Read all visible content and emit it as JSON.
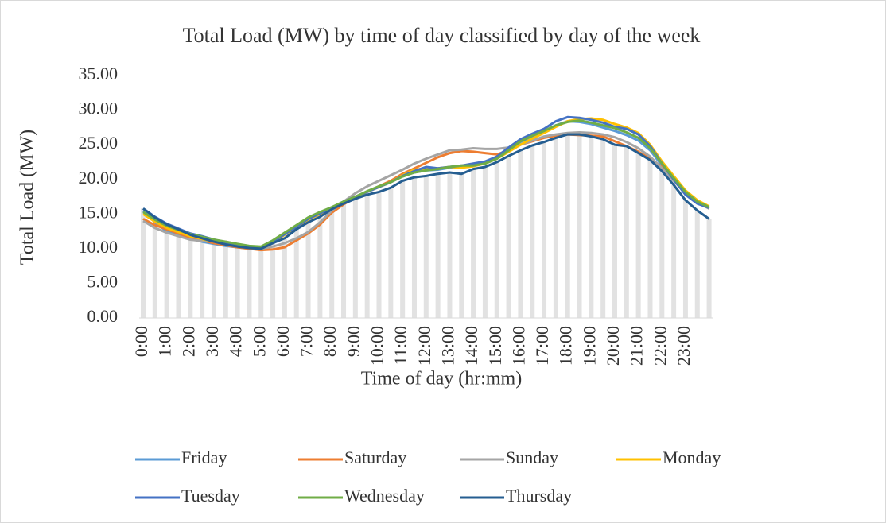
{
  "chart_data": {
    "type": "line",
    "title": "Total Load (MW) by time of day classified by day of the week",
    "x_label": "Time of day (hr:mm)",
    "y_label": "Total Load (MW)",
    "categories": [
      "0:00",
      null,
      "1:00",
      null,
      "2:00",
      null,
      "3:00",
      null,
      "4:00",
      null,
      "5:00",
      null,
      "6:00",
      null,
      "7:00",
      null,
      "8:00",
      null,
      "9:00",
      null,
      "10:00",
      null,
      "11:00",
      null,
      "12:00",
      null,
      "13:00",
      null,
      "14:00",
      null,
      "15:00",
      null,
      "16:00",
      null,
      "17:00",
      null,
      "18:00",
      null,
      "19:00",
      null,
      "20:00",
      null,
      "21:00",
      null,
      "22:00",
      null,
      "23:00",
      null,
      null
    ],
    "ylim": [
      0,
      35
    ],
    "yticks": [
      {
        "value": 0,
        "label": "0.00"
      },
      {
        "value": 5,
        "label": "5.00"
      },
      {
        "value": 10,
        "label": "10.00"
      },
      {
        "value": 15,
        "label": "15.00"
      },
      {
        "value": 20,
        "label": "20.00"
      },
      {
        "value": 25,
        "label": "25.00"
      },
      {
        "value": 30,
        "label": "30.00"
      },
      {
        "value": 35,
        "label": "35.00"
      }
    ],
    "grid": false,
    "legend": "bottom",
    "series": [
      {
        "name": "Friday",
        "color": "#5b9bd5",
        "values": [
          15.5,
          13.8,
          12.5,
          12.0,
          11.5,
          11.0,
          10.7,
          10.4,
          10.2,
          10.0,
          10.0,
          10.9,
          12.0,
          13.1,
          14.2,
          15.0,
          15.8,
          16.7,
          17.4,
          18.2,
          18.9,
          19.6,
          20.5,
          21.0,
          21.3,
          21.4,
          21.7,
          21.8,
          22.0,
          22.3,
          23.0,
          24.2,
          25.4,
          26.2,
          26.9,
          27.8,
          28.4,
          28.3,
          28.0,
          27.5,
          27.0,
          26.4,
          25.6,
          24.2,
          22.0,
          20.0,
          18.0,
          16.7,
          15.8
        ]
      },
      {
        "name": "Saturday",
        "color": "#ed7d31",
        "values": [
          14.3,
          13.4,
          12.8,
          12.2,
          11.6,
          11.2,
          10.8,
          10.5,
          10.2,
          10.0,
          9.8,
          9.9,
          10.2,
          11.2,
          12.2,
          13.5,
          15.2,
          16.4,
          17.4,
          18.2,
          19.0,
          19.8,
          20.8,
          21.6,
          22.4,
          23.2,
          23.8,
          24.1,
          24.0,
          23.8,
          23.6,
          24.2,
          25.0,
          25.5,
          26.0,
          26.3,
          26.5,
          26.4,
          26.3,
          26.2,
          25.5,
          24.8,
          24.0,
          23.0,
          21.8,
          20.3,
          18.3,
          16.8,
          15.8
        ]
      },
      {
        "name": "Sunday",
        "color": "#a5a5a5",
        "values": [
          14.0,
          13.0,
          12.3,
          11.8,
          11.3,
          11.1,
          11.1,
          11.0,
          10.6,
          10.3,
          10.0,
          10.3,
          10.8,
          11.5,
          12.4,
          13.8,
          15.5,
          16.8,
          18.0,
          19.0,
          19.8,
          20.6,
          21.4,
          22.3,
          23.0,
          23.6,
          24.2,
          24.3,
          24.5,
          24.4,
          24.4,
          24.6,
          25.0,
          25.6,
          26.2,
          26.5,
          26.7,
          26.8,
          26.7,
          26.5,
          26.1,
          25.4,
          24.5,
          23.3,
          21.6,
          19.8,
          18.0,
          16.6,
          15.8
        ]
      },
      {
        "name": "Monday",
        "color": "#ffc000",
        "values": [
          15.0,
          13.9,
          13.0,
          12.4,
          11.8,
          11.4,
          11.0,
          10.7,
          10.4,
          10.2,
          10.1,
          10.9,
          12.0,
          13.2,
          14.2,
          15.0,
          15.8,
          16.7,
          17.4,
          18.2,
          18.9,
          19.6,
          20.6,
          21.4,
          21.6,
          21.6,
          21.8,
          21.7,
          21.9,
          22.3,
          23.0,
          24.0,
          25.0,
          25.9,
          26.7,
          27.6,
          28.4,
          28.7,
          28.8,
          28.6,
          28.0,
          27.5,
          26.7,
          25.0,
          22.6,
          20.5,
          18.4,
          17.0,
          16.1
        ]
      },
      {
        "name": "Tuesday",
        "color": "#4472c4",
        "values": [
          15.8,
          14.6,
          13.6,
          12.9,
          12.2,
          11.8,
          11.3,
          10.9,
          10.6,
          10.3,
          10.2,
          11.0,
          12.1,
          13.2,
          14.3,
          15.1,
          15.9,
          16.8,
          17.5,
          18.2,
          18.9,
          19.6,
          20.5,
          21.2,
          21.8,
          21.6,
          21.8,
          22.0,
          22.3,
          22.6,
          23.3,
          24.6,
          25.8,
          26.6,
          27.3,
          28.4,
          29.0,
          28.9,
          28.6,
          28.2,
          27.6,
          27.3,
          26.5,
          24.8,
          22.3,
          20.0,
          17.8,
          16.5,
          15.9
        ]
      },
      {
        "name": "Wednesday",
        "color": "#70ad47",
        "values": [
          15.3,
          14.2,
          13.3,
          12.7,
          12.1,
          11.7,
          11.3,
          11.0,
          10.7,
          10.4,
          10.3,
          11.2,
          12.3,
          13.4,
          14.5,
          15.3,
          16.0,
          16.8,
          17.5,
          18.3,
          19.0,
          19.6,
          20.4,
          21.0,
          21.3,
          21.5,
          21.8,
          22.0,
          22.0,
          22.3,
          23.0,
          24.2,
          25.5,
          26.3,
          27.0,
          27.8,
          28.3,
          28.5,
          28.2,
          27.8,
          27.4,
          26.8,
          26.0,
          24.5,
          22.3,
          20.2,
          18.2,
          16.8,
          16.0
        ]
      },
      {
        "name": "Thursday",
        "color": "#255e91",
        "values": [
          15.8,
          14.5,
          13.5,
          12.8,
          12.0,
          11.5,
          11.0,
          10.6,
          10.3,
          10.1,
          10.0,
          10.8,
          11.5,
          12.8,
          13.8,
          14.6,
          15.7,
          16.5,
          17.2,
          17.8,
          18.2,
          18.8,
          19.8,
          20.3,
          20.5,
          20.8,
          21.0,
          20.8,
          21.5,
          21.8,
          22.5,
          23.4,
          24.2,
          24.9,
          25.4,
          26.0,
          26.5,
          26.5,
          26.2,
          25.8,
          25.0,
          24.8,
          23.8,
          22.8,
          21.2,
          19.2,
          17.0,
          15.5,
          14.3
        ]
      }
    ]
  }
}
